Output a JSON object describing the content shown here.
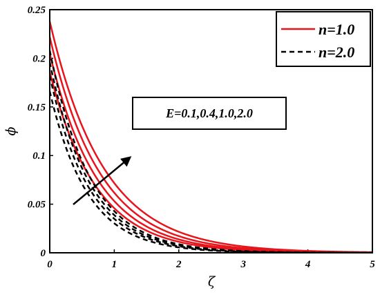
{
  "chart_data": {
    "type": "line",
    "title": "",
    "xlabel": "ζ",
    "ylabel": "ϕ",
    "xlim": [
      0,
      5
    ],
    "ylim": [
      0,
      0.25
    ],
    "xticks": [
      "0",
      "1",
      "2",
      "3",
      "4",
      "5"
    ],
    "yticks": [
      "0",
      "0.05",
      "0.1",
      "0.15",
      "0.2",
      "0.25"
    ],
    "grid": false,
    "legend": {
      "placement": "top-right",
      "entries": [
        {
          "label": "n=1.0",
          "color": "#e8141b",
          "dash": "solid"
        },
        {
          "label": "n=2.0",
          "color": "#000000",
          "dash": "dashed"
        }
      ]
    },
    "annotation": {
      "text": "E=0.1,0.4,1.0,2.0",
      "arrow": "increasing E"
    },
    "series": [
      {
        "group": "n=1.0",
        "E": "0.1",
        "y0": 0.186,
        "decay": 1.4
      },
      {
        "group": "n=1.0",
        "E": "0.4",
        "y0": 0.205,
        "decay": 1.35
      },
      {
        "group": "n=1.0",
        "E": "1.0",
        "y0": 0.222,
        "decay": 1.28
      },
      {
        "group": "n=1.0",
        "E": "2.0",
        "y0": 0.238,
        "decay": 1.2
      },
      {
        "group": "n=2.0",
        "E": "0.1",
        "y0": 0.166,
        "decay": 1.7
      },
      {
        "group": "n=2.0",
        "E": "0.4",
        "y0": 0.182,
        "decay": 1.65
      },
      {
        "group": "n=2.0",
        "E": "1.0",
        "y0": 0.196,
        "decay": 1.62
      },
      {
        "group": "n=2.0",
        "E": "2.0",
        "y0": 0.208,
        "decay": 1.58
      }
    ]
  }
}
